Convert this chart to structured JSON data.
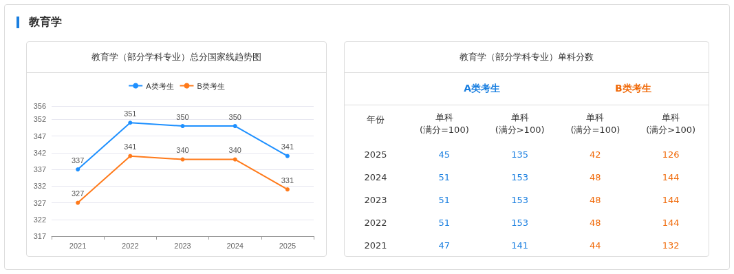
{
  "chart_data": [
    {
      "type": "line",
      "title": "教育学（部分学科专业）总分国家线趋势图",
      "annotations": [
        "教育学"
      ],
      "categories": [
        "2021",
        "2022",
        "2023",
        "2024",
        "2025"
      ],
      "series": [
        {
          "name": "A类考生",
          "color": "#1e90ff",
          "values": [
            337,
            351,
            350,
            350,
            341
          ]
        },
        {
          "name": "B类考生",
          "color": "#ff7a1a",
          "values": [
            327,
            341,
            340,
            340,
            331
          ]
        }
      ],
      "ylim": [
        317,
        356
      ],
      "yticks": [
        317,
        322,
        327,
        332,
        337,
        342,
        347,
        352,
        356
      ],
      "grid": "y",
      "legend": "top",
      "marker": "circle",
      "line_style": "solid",
      "data_labels": true
    },
    {
      "type": "heatmap",
      "title": "教育学（部分学科专业）单科分数",
      "ylabel": "年份",
      "categories": [
        "单科(满分=100)",
        "单科(满分>100)",
        "单科(满分=100)",
        "单科(满分>100)"
      ],
      "y_categories": [
        "2025",
        "2024",
        "2023",
        "2022",
        "2021"
      ],
      "cells": [
        [
          45,
          135,
          42,
          126
        ],
        [
          51,
          153,
          48,
          144
        ],
        [
          51,
          153,
          48,
          144
        ],
        [
          51,
          153,
          48,
          144
        ],
        [
          47,
          141,
          44,
          132
        ]
      ],
      "annotations": [
        "A类考生",
        "B类考生"
      ],
      "colors": [
        "#1a7fe0",
        "#1a7fe0",
        "#f06a0a",
        "#f06a0a"
      ],
      "data_labels": true
    }
  ]
}
